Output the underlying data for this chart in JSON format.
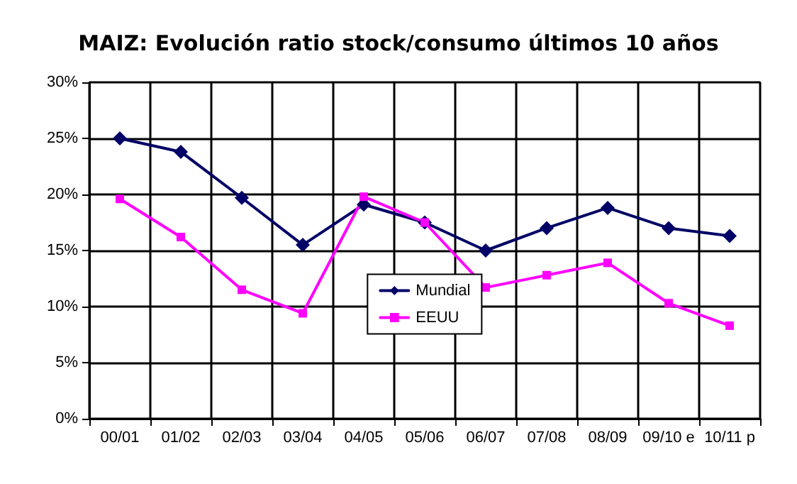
{
  "chart_data": {
    "type": "line",
    "title": "MAIZ: Evolución ratio stock/consumo últimos 10 años",
    "categories": [
      "00/01",
      "01/02",
      "02/03",
      "03/04",
      "04/05",
      "05/06",
      "06/07",
      "07/08",
      "08/09",
      "09/10 e",
      "10/11 p"
    ],
    "series": [
      {
        "name": "Mundial",
        "color": "#000066",
        "marker": "diamond",
        "values": [
          25,
          23.8,
          19.7,
          15.5,
          19.1,
          17.5,
          15,
          17,
          18.8,
          17,
          16.3
        ]
      },
      {
        "name": "EEUU",
        "color": "#ff00ff",
        "marker": "square",
        "values": [
          19.6,
          16.2,
          11.5,
          9.4,
          19.8,
          17.5,
          11.7,
          12.8,
          13.9,
          10.3,
          8.3
        ]
      }
    ],
    "ylim": [
      0,
      30
    ],
    "yticks": [
      {
        "value": 0,
        "label": "0%"
      },
      {
        "value": 5,
        "label": "5%"
      },
      {
        "value": 10,
        "label": "10%"
      },
      {
        "value": 15,
        "label": "15%"
      },
      {
        "value": 20,
        "label": "20%"
      },
      {
        "value": 25,
        "label": "25%"
      },
      {
        "value": 30,
        "label": "30%"
      }
    ],
    "grid": true,
    "legend": "center",
    "line_style": "solid"
  }
}
